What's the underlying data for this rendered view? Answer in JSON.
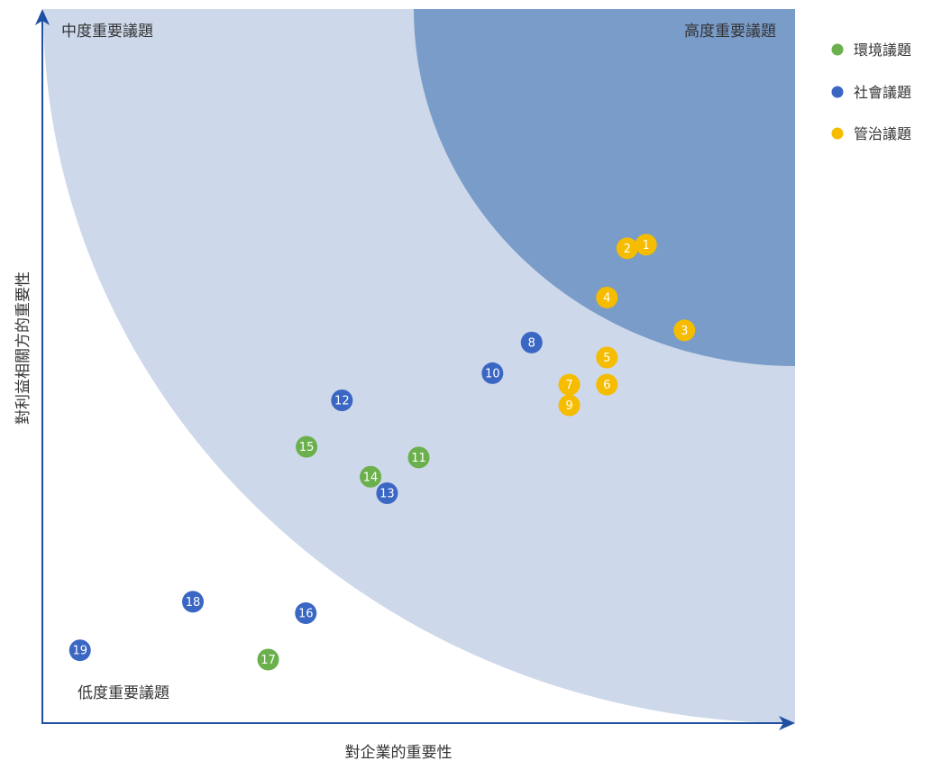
{
  "colors": {
    "zone_outer": "#cdd8ea",
    "zone_inner": "#7a9cc9",
    "axis": "#1f4fa3",
    "env": "#6ab04c",
    "soc": "#3a66c4",
    "gov": "#f5bc00"
  },
  "zones": {
    "high": "高度重要議題",
    "medium": "中度重要議題",
    "low": "低度重要議題"
  },
  "axes": {
    "x_title": "對企業的重要性",
    "y_title": "對利益相關方的重要性"
  },
  "legend": [
    {
      "label": "環境議題",
      "category": "env"
    },
    {
      "label": "社會議題",
      "category": "soc"
    },
    {
      "label": "管治議題",
      "category": "gov"
    }
  ],
  "chart_data": {
    "type": "scatter",
    "xlabel": "對企業的重要性",
    "ylabel": "對利益相關方的重要性",
    "xlim": [
      0,
      100
    ],
    "ylim": [
      0,
      100
    ],
    "grid": false,
    "legend_position": "top-right",
    "series": [
      {
        "name": "環境議題",
        "points": [
          {
            "label": "11",
            "x": 50.0,
            "y": 37.2
          },
          {
            "label": "14",
            "x": 43.6,
            "y": 34.5
          },
          {
            "label": "15",
            "x": 35.1,
            "y": 38.7
          },
          {
            "label": "17",
            "x": 30.0,
            "y": 8.9
          }
        ]
      },
      {
        "name": "社會議題",
        "points": [
          {
            "label": "8",
            "x": 65.0,
            "y": 53.3
          },
          {
            "label": "10",
            "x": 59.8,
            "y": 49.0
          },
          {
            "label": "12",
            "x": 39.8,
            "y": 45.2
          },
          {
            "label": "13",
            "x": 45.8,
            "y": 32.2
          },
          {
            "label": "16",
            "x": 35.0,
            "y": 15.4
          },
          {
            "label": "18",
            "x": 20.0,
            "y": 17.0
          },
          {
            "label": "19",
            "x": 5.0,
            "y": 10.2
          }
        ]
      },
      {
        "name": "管治議題",
        "points": [
          {
            "label": "1",
            "x": 80.2,
            "y": 67.0
          },
          {
            "label": "2",
            "x": 77.7,
            "y": 66.5
          },
          {
            "label": "3",
            "x": 85.3,
            "y": 55.0
          },
          {
            "label": "4",
            "x": 75.0,
            "y": 59.6
          },
          {
            "label": "5",
            "x": 75.0,
            "y": 51.2
          },
          {
            "label": "6",
            "x": 75.0,
            "y": 47.4
          },
          {
            "label": "7",
            "x": 70.0,
            "y": 47.4
          },
          {
            "label": "9",
            "x": 70.0,
            "y": 44.5
          }
        ]
      }
    ]
  }
}
